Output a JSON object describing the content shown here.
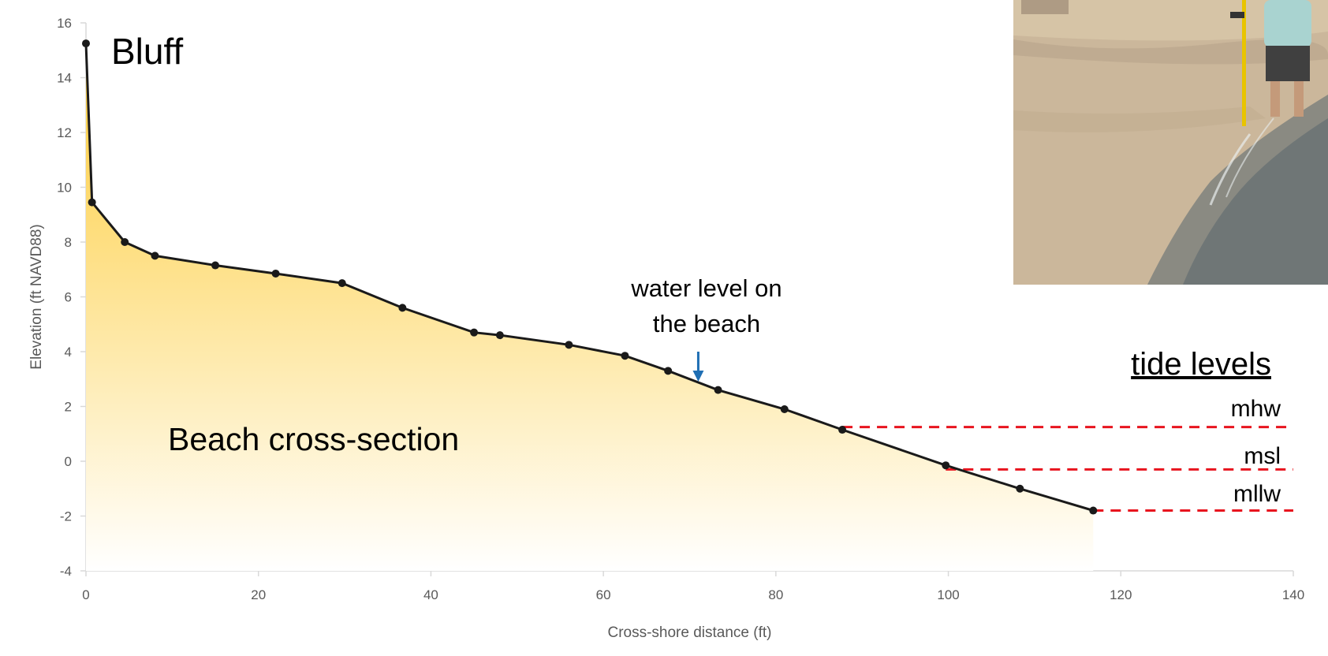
{
  "chart_data": {
    "type": "area",
    "title": "",
    "xlabel": "Cross-shore distance (ft)",
    "ylabel": "Elevation (ft NAVD88)",
    "xlim": [
      0,
      140
    ],
    "ylim": [
      -4,
      16
    ],
    "xticks": [
      0,
      20,
      40,
      60,
      80,
      100,
      120,
      140
    ],
    "yticks": [
      -4,
      -2,
      0,
      2,
      4,
      6,
      8,
      10,
      12,
      14,
      16
    ],
    "grid": false,
    "series": [
      {
        "x": [
          0,
          0.7,
          4.5,
          8,
          15,
          22,
          29.7,
          36.7,
          45,
          48,
          56,
          62.5,
          67.5,
          73.3,
          81,
          87.7,
          99.7,
          108.3,
          116.8
        ],
        "y": [
          15.25,
          9.45,
          8.0,
          7.5,
          7.15,
          6.85,
          6.5,
          5.6,
          4.7,
          4.6,
          4.25,
          3.85,
          3.3,
          2.6,
          1.9,
          1.15,
          -0.15,
          -1.0,
          -1.8
        ]
      }
    ],
    "tide_levels": [
      {
        "name": "mhw",
        "y": 1.25,
        "x_start": 87.7
      },
      {
        "name": "msl",
        "y": -0.3,
        "x_start": 99.7
      },
      {
        "name": "mllw",
        "y": -1.8,
        "x_start": 116.8
      }
    ],
    "annotations": {
      "bluff": "Bluff",
      "cross_section": "Beach cross-section",
      "water_level_line1": "water level on",
      "water_level_line2": "the beach",
      "water_level_x": 71,
      "tide_header": "tide levels"
    },
    "colors": {
      "fill_top": "#FDCB35",
      "line": "#1a1a1a",
      "tide_line": "#E8141E",
      "arrow": "#1F6FB4"
    }
  }
}
